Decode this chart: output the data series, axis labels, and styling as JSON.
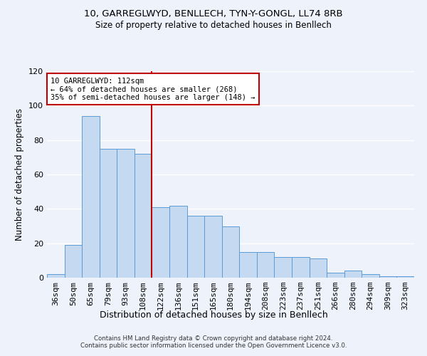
{
  "title1": "10, GARREGLWYD, BENLLECH, TYN-Y-GONGL, LL74 8RB",
  "title2": "Size of property relative to detached houses in Benllech",
  "xlabel": "Distribution of detached houses by size in Benllech",
  "ylabel": "Number of detached properties",
  "categories": [
    "36sqm",
    "50sqm",
    "65sqm",
    "79sqm",
    "93sqm",
    "108sqm",
    "122sqm",
    "136sqm",
    "151sqm",
    "165sqm",
    "180sqm",
    "194sqm",
    "208sqm",
    "223sqm",
    "237sqm",
    "251sqm",
    "266sqm",
    "280sqm",
    "294sqm",
    "309sqm",
    "323sqm"
  ],
  "bar_values": [
    2,
    19,
    94,
    75,
    75,
    72,
    41,
    42,
    36,
    36,
    30,
    15,
    15,
    12,
    12,
    11,
    3,
    4,
    2,
    1,
    1
  ],
  "bar_color": "#c5d9f0",
  "bar_edge_color": "#5b9bd5",
  "vline_x": 6.0,
  "vline_color": "#c00000",
  "annotation_text": "10 GARREGLWYD: 112sqm\n← 64% of detached houses are smaller (268)\n35% of semi-detached houses are larger (148) →",
  "annotation_box_color": "#c00000",
  "background_color": "#eef2fb",
  "grid_color": "#ffffff",
  "footnote": "Contains HM Land Registry data © Crown copyright and database right 2024.\nContains public sector information licensed under the Open Government Licence v3.0.",
  "ylim": [
    0,
    120
  ],
  "yticks": [
    0,
    20,
    40,
    60,
    80,
    100,
    120
  ]
}
